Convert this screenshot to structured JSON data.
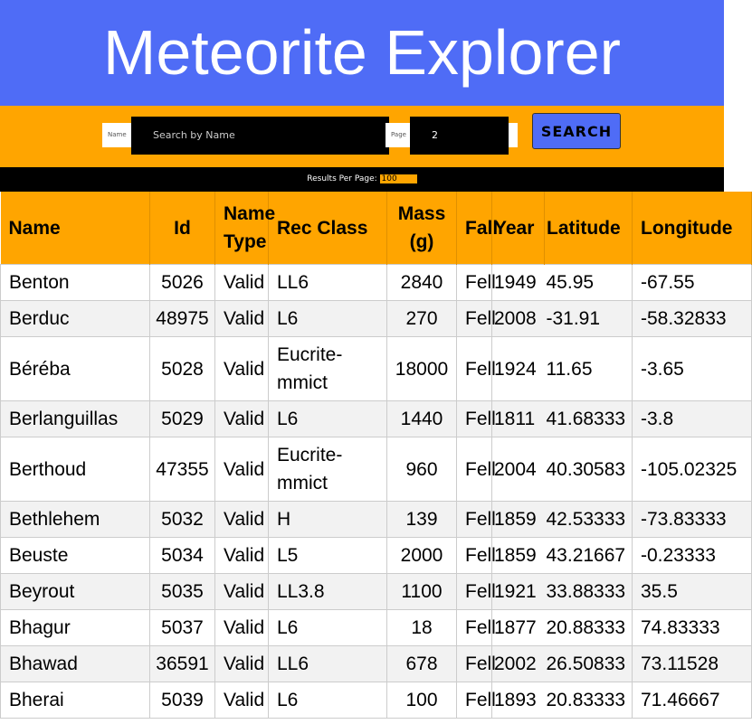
{
  "header": {
    "title": "Meteorite Explorer"
  },
  "search": {
    "name_label": "Name",
    "name_placeholder": "Search by Name",
    "page_label": "Page",
    "page_value": "2",
    "button": "SEARCH",
    "per_page_label": "Results Per Page:",
    "per_page_value": "100"
  },
  "table": {
    "columns": [
      "Name",
      "Id",
      "Name Type",
      "Rec Class",
      "Mass (g)",
      "Fall",
      "Year",
      "Latitude",
      "Longitude"
    ],
    "rows": [
      [
        "Benton",
        "5026",
        "Valid",
        "LL6",
        "2840",
        "Fell",
        "1949",
        "45.95",
        "-67.55"
      ],
      [
        "Berduc",
        "48975",
        "Valid",
        "L6",
        "270",
        "Fell",
        "2008",
        "-31.91",
        "-58.32833"
      ],
      [
        "Béréba",
        "5028",
        "Valid",
        "Eucrite-mmict",
        "18000",
        "Fell",
        "1924",
        "11.65",
        "-3.65"
      ],
      [
        "Berlanguillas",
        "5029",
        "Valid",
        "L6",
        "1440",
        "Fell",
        "1811",
        "41.68333",
        "-3.8"
      ],
      [
        "Berthoud",
        "47355",
        "Valid",
        "Eucrite-mmict",
        "960",
        "Fell",
        "2004",
        "40.30583",
        "-105.02325"
      ],
      [
        "Bethlehem",
        "5032",
        "Valid",
        "H",
        "139",
        "Fell",
        "1859",
        "42.53333",
        "-73.83333"
      ],
      [
        "Beuste",
        "5034",
        "Valid",
        "L5",
        "2000",
        "Fell",
        "1859",
        "43.21667",
        "-0.23333"
      ],
      [
        "Beyrout",
        "5035",
        "Valid",
        "LL3.8",
        "1100",
        "Fell",
        "1921",
        "33.88333",
        "35.5"
      ],
      [
        "Bhagur",
        "5037",
        "Valid",
        "L6",
        "18",
        "Fell",
        "1877",
        "20.88333",
        "74.83333"
      ],
      [
        "Bhawad",
        "36591",
        "Valid",
        "LL6",
        "678",
        "Fell",
        "2002",
        "26.50833",
        "73.11528"
      ],
      [
        "Bherai",
        "5039",
        "Valid",
        "L6",
        "100",
        "Fell",
        "1893",
        "20.83333",
        "71.46667"
      ]
    ]
  }
}
